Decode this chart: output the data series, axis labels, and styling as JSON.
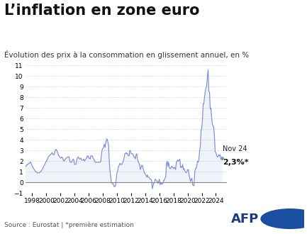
{
  "title": "L’inflation en zone euro",
  "subtitle": "Évolution des prix à la consommation en glissement annuel, en %",
  "source": "Source : Eurostat | *première estimation",
  "annotation_label": "Nov 24",
  "annotation_value": "2,3%*",
  "line_color": "#7b8fd4",
  "background_color": "#ffffff",
  "ylim": [
    -1,
    11
  ],
  "yticks": [
    -1,
    0,
    1,
    2,
    3,
    4,
    5,
    6,
    7,
    8,
    9,
    10,
    11
  ],
  "xtick_years": [
    1998,
    2000,
    2002,
    2004,
    2006,
    2008,
    2010,
    2012,
    2014,
    2016,
    2018,
    2020,
    2022,
    2024
  ],
  "data": [
    [
      1997.0,
      1.6
    ],
    [
      1997.1,
      1.5
    ],
    [
      1997.2,
      1.6
    ],
    [
      1997.3,
      1.7
    ],
    [
      1997.4,
      1.7
    ],
    [
      1997.5,
      1.8
    ],
    [
      1997.6,
      1.8
    ],
    [
      1997.7,
      1.9
    ],
    [
      1997.8,
      1.9
    ],
    [
      1998.0,
      1.5
    ],
    [
      1998.1,
      1.4
    ],
    [
      1998.2,
      1.3
    ],
    [
      1998.3,
      1.2
    ],
    [
      1998.4,
      1.1
    ],
    [
      1998.5,
      1.0
    ],
    [
      1998.6,
      1.0
    ],
    [
      1998.7,
      0.9
    ],
    [
      1998.8,
      0.9
    ],
    [
      1998.9,
      0.9
    ],
    [
      1999.0,
      0.9
    ],
    [
      1999.1,
      1.0
    ],
    [
      1999.2,
      1.0
    ],
    [
      1999.3,
      1.1
    ],
    [
      1999.4,
      1.2
    ],
    [
      1999.5,
      1.3
    ],
    [
      1999.6,
      1.5
    ],
    [
      1999.7,
      1.6
    ],
    [
      1999.8,
      1.7
    ],
    [
      1999.9,
      1.9
    ],
    [
      2000.0,
      2.0
    ],
    [
      2000.1,
      2.1
    ],
    [
      2000.2,
      2.3
    ],
    [
      2000.3,
      2.4
    ],
    [
      2000.4,
      2.5
    ],
    [
      2000.5,
      2.6
    ],
    [
      2000.6,
      2.6
    ],
    [
      2000.7,
      2.7
    ],
    [
      2000.8,
      2.8
    ],
    [
      2000.9,
      2.7
    ],
    [
      2001.0,
      2.6
    ],
    [
      2001.1,
      2.6
    ],
    [
      2001.2,
      2.9
    ],
    [
      2001.3,
      3.1
    ],
    [
      2001.4,
      3.1
    ],
    [
      2001.5,
      3.0
    ],
    [
      2001.6,
      2.8
    ],
    [
      2001.7,
      2.6
    ],
    [
      2001.8,
      2.5
    ],
    [
      2001.9,
      2.4
    ],
    [
      2002.0,
      2.3
    ],
    [
      2002.1,
      2.3
    ],
    [
      2002.2,
      2.4
    ],
    [
      2002.3,
      2.3
    ],
    [
      2002.4,
      2.1
    ],
    [
      2002.5,
      2.0
    ],
    [
      2002.6,
      2.1
    ],
    [
      2002.7,
      2.2
    ],
    [
      2002.8,
      2.3
    ],
    [
      2002.9,
      2.3
    ],
    [
      2003.0,
      2.4
    ],
    [
      2003.1,
      2.4
    ],
    [
      2003.2,
      2.4
    ],
    [
      2003.3,
      2.1
    ],
    [
      2003.4,
      1.9
    ],
    [
      2003.5,
      1.9
    ],
    [
      2003.6,
      1.9
    ],
    [
      2003.7,
      2.1
    ],
    [
      2003.8,
      2.2
    ],
    [
      2003.9,
      2.1
    ],
    [
      2004.0,
      1.7
    ],
    [
      2004.1,
      1.7
    ],
    [
      2004.2,
      1.7
    ],
    [
      2004.3,
      2.1
    ],
    [
      2004.4,
      2.3
    ],
    [
      2004.5,
      2.4
    ],
    [
      2004.6,
      2.3
    ],
    [
      2004.7,
      2.2
    ],
    [
      2004.8,
      2.2
    ],
    [
      2004.9,
      2.3
    ],
    [
      2005.0,
      2.1
    ],
    [
      2005.1,
      2.1
    ],
    [
      2005.2,
      2.1
    ],
    [
      2005.3,
      2.2
    ],
    [
      2005.4,
      2.0
    ],
    [
      2005.5,
      2.1
    ],
    [
      2005.6,
      2.2
    ],
    [
      2005.7,
      2.3
    ],
    [
      2005.8,
      2.5
    ],
    [
      2005.9,
      2.5
    ],
    [
      2006.0,
      2.3
    ],
    [
      2006.1,
      2.3
    ],
    [
      2006.2,
      2.2
    ],
    [
      2006.3,
      2.5
    ],
    [
      2006.4,
      2.5
    ],
    [
      2006.5,
      2.5
    ],
    [
      2006.6,
      2.3
    ],
    [
      2006.7,
      2.2
    ],
    [
      2006.8,
      2.1
    ],
    [
      2006.9,
      1.9
    ],
    [
      2007.0,
      1.9
    ],
    [
      2007.1,
      1.9
    ],
    [
      2007.2,
      1.9
    ],
    [
      2007.3,
      1.9
    ],
    [
      2007.4,
      1.9
    ],
    [
      2007.5,
      1.9
    ],
    [
      2007.6,
      1.9
    ],
    [
      2007.7,
      2.0
    ],
    [
      2007.8,
      2.6
    ],
    [
      2007.9,
      3.1
    ],
    [
      2008.0,
      3.2
    ],
    [
      2008.1,
      3.3
    ],
    [
      2008.2,
      3.6
    ],
    [
      2008.3,
      3.3
    ],
    [
      2008.4,
      3.7
    ],
    [
      2008.5,
      4.0
    ],
    [
      2008.6,
      4.1
    ],
    [
      2008.7,
      3.8
    ],
    [
      2008.8,
      3.6
    ],
    [
      2008.9,
      2.1
    ],
    [
      2009.0,
      1.1
    ],
    [
      2009.1,
      0.6
    ],
    [
      2009.2,
      0.0
    ],
    [
      2009.3,
      -0.1
    ],
    [
      2009.4,
      -0.1
    ],
    [
      2009.5,
      -0.2
    ],
    [
      2009.6,
      -0.4
    ],
    [
      2009.7,
      -0.4
    ],
    [
      2009.8,
      -0.3
    ],
    [
      2009.9,
      0.4
    ],
    [
      2010.0,
      0.9
    ],
    [
      2010.1,
      1.1
    ],
    [
      2010.2,
      1.5
    ],
    [
      2010.3,
      1.6
    ],
    [
      2010.4,
      1.8
    ],
    [
      2010.5,
      1.7
    ],
    [
      2010.6,
      1.7
    ],
    [
      2010.7,
      1.7
    ],
    [
      2010.8,
      1.9
    ],
    [
      2010.9,
      2.0
    ],
    [
      2011.0,
      2.3
    ],
    [
      2011.1,
      2.7
    ],
    [
      2011.2,
      2.7
    ],
    [
      2011.3,
      2.8
    ],
    [
      2011.4,
      2.7
    ],
    [
      2011.5,
      2.7
    ],
    [
      2011.6,
      2.5
    ],
    [
      2011.7,
      2.5
    ],
    [
      2011.8,
      3.0
    ],
    [
      2011.9,
      3.0
    ],
    [
      2012.0,
      2.7
    ],
    [
      2012.1,
      2.7
    ],
    [
      2012.2,
      2.7
    ],
    [
      2012.3,
      2.6
    ],
    [
      2012.4,
      2.4
    ],
    [
      2012.5,
      2.4
    ],
    [
      2012.6,
      2.2
    ],
    [
      2012.7,
      2.6
    ],
    [
      2012.8,
      2.7
    ],
    [
      2012.9,
      2.2
    ],
    [
      2013.0,
      2.0
    ],
    [
      2013.1,
      1.8
    ],
    [
      2013.2,
      1.7
    ],
    [
      2013.3,
      1.2
    ],
    [
      2013.4,
      1.4
    ],
    [
      2013.5,
      1.6
    ],
    [
      2013.6,
      1.6
    ],
    [
      2013.7,
      1.3
    ],
    [
      2013.8,
      1.1
    ],
    [
      2013.9,
      0.9
    ],
    [
      2014.0,
      0.8
    ],
    [
      2014.1,
      0.7
    ],
    [
      2014.2,
      0.5
    ],
    [
      2014.3,
      0.7
    ],
    [
      2014.4,
      0.5
    ],
    [
      2014.5,
      0.5
    ],
    [
      2014.6,
      0.4
    ],
    [
      2014.7,
      0.3
    ],
    [
      2014.8,
      0.3
    ],
    [
      2014.9,
      0.2
    ],
    [
      2015.0,
      -0.6
    ],
    [
      2015.1,
      -0.3
    ],
    [
      2015.2,
      -0.1
    ],
    [
      2015.3,
      0.0
    ],
    [
      2015.4,
      0.3
    ],
    [
      2015.5,
      0.2
    ],
    [
      2015.6,
      0.2
    ],
    [
      2015.7,
      0.1
    ],
    [
      2015.8,
      -0.1
    ],
    [
      2015.9,
      0.1
    ],
    [
      2016.0,
      0.3
    ],
    [
      2016.1,
      -0.2
    ],
    [
      2016.2,
      0.0
    ],
    [
      2016.3,
      -0.2
    ],
    [
      2016.4,
      -0.1
    ],
    [
      2016.5,
      -0.1
    ],
    [
      2016.6,
      0.2
    ],
    [
      2016.7,
      0.2
    ],
    [
      2016.8,
      0.4
    ],
    [
      2016.9,
      0.5
    ],
    [
      2017.0,
      1.8
    ],
    [
      2017.1,
      2.0
    ],
    [
      2017.2,
      1.5
    ],
    [
      2017.3,
      1.9
    ],
    [
      2017.4,
      1.4
    ],
    [
      2017.5,
      1.3
    ],
    [
      2017.6,
      1.3
    ],
    [
      2017.7,
      1.5
    ],
    [
      2017.8,
      1.5
    ],
    [
      2017.9,
      1.4
    ],
    [
      2018.0,
      1.3
    ],
    [
      2018.1,
      1.4
    ],
    [
      2018.2,
      1.4
    ],
    [
      2018.3,
      1.2
    ],
    [
      2018.4,
      1.9
    ],
    [
      2018.5,
      2.0
    ],
    [
      2018.6,
      2.1
    ],
    [
      2018.7,
      2.0
    ],
    [
      2018.8,
      2.1
    ],
    [
      2018.9,
      2.2
    ],
    [
      2019.0,
      1.4
    ],
    [
      2019.1,
      1.5
    ],
    [
      2019.2,
      1.4
    ],
    [
      2019.3,
      1.7
    ],
    [
      2019.4,
      1.2
    ],
    [
      2019.5,
      1.3
    ],
    [
      2019.6,
      1.1
    ],
    [
      2019.7,
      1.0
    ],
    [
      2019.8,
      0.9
    ],
    [
      2019.9,
      1.0
    ],
    [
      2020.0,
      1.2
    ],
    [
      2020.1,
      1.2
    ],
    [
      2020.2,
      0.7
    ],
    [
      2020.3,
      0.4
    ],
    [
      2020.4,
      0.1
    ],
    [
      2020.5,
      0.3
    ],
    [
      2020.6,
      0.4
    ],
    [
      2020.7,
      -0.2
    ],
    [
      2020.8,
      -0.3
    ],
    [
      2020.9,
      -0.3
    ],
    [
      2021.0,
      0.9
    ],
    [
      2021.1,
      1.3
    ],
    [
      2021.2,
      1.3
    ],
    [
      2021.3,
      1.6
    ],
    [
      2021.4,
      2.0
    ],
    [
      2021.5,
      1.9
    ],
    [
      2021.6,
      2.2
    ],
    [
      2021.7,
      3.0
    ],
    [
      2021.8,
      3.4
    ],
    [
      2021.9,
      4.9
    ],
    [
      2022.0,
      5.1
    ],
    [
      2022.1,
      5.9
    ],
    [
      2022.2,
      7.4
    ],
    [
      2022.3,
      7.4
    ],
    [
      2022.4,
      8.1
    ],
    [
      2022.5,
      8.6
    ],
    [
      2022.6,
      8.9
    ],
    [
      2022.7,
      9.1
    ],
    [
      2022.8,
      10.0
    ],
    [
      2022.9,
      10.6
    ],
    [
      2023.0,
      8.6
    ],
    [
      2023.1,
      8.5
    ],
    [
      2023.2,
      6.9
    ],
    [
      2023.3,
      7.0
    ],
    [
      2023.4,
      6.1
    ],
    [
      2023.5,
      5.5
    ],
    [
      2023.6,
      5.3
    ],
    [
      2023.7,
      5.2
    ],
    [
      2023.8,
      4.3
    ],
    [
      2023.9,
      2.9
    ],
    [
      2024.0,
      2.8
    ],
    [
      2024.1,
      2.6
    ],
    [
      2024.2,
      2.4
    ],
    [
      2024.3,
      2.4
    ],
    [
      2024.4,
      2.6
    ],
    [
      2024.5,
      2.5
    ],
    [
      2024.6,
      2.6
    ],
    [
      2024.7,
      2.2
    ],
    [
      2024.8,
      2.3
    ],
    [
      2024.9,
      2.3
    ]
  ]
}
